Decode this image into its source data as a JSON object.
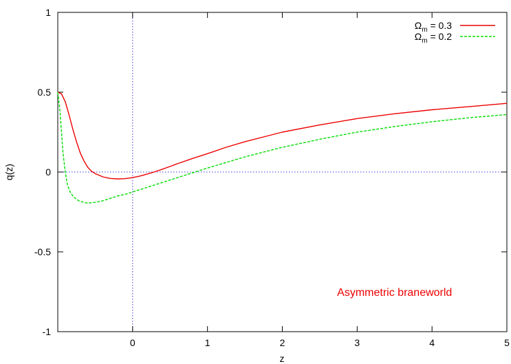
{
  "chart_data": {
    "type": "line",
    "xlabel": "z",
    "ylabel": "q(z)",
    "xlim": [
      -1,
      5
    ],
    "ylim": [
      -1,
      1
    ],
    "xticks": [
      "0",
      "1",
      "2",
      "3",
      "4",
      "5"
    ],
    "xtick_values": [
      0,
      1,
      2,
      3,
      4,
      5
    ],
    "yticks": [
      "1",
      "0.5",
      "0",
      "-0.5",
      "-1"
    ],
    "ytick_values": [
      1,
      0.5,
      0,
      -0.5,
      -1
    ],
    "reference_lines": {
      "x": 0,
      "y": 0,
      "color": "#3a3adc",
      "style": "dotted"
    },
    "annotation": {
      "text": "Asymmetric braneworld",
      "color": "#ee0000",
      "x": 3.5,
      "y": -0.75
    },
    "legend": {
      "position": "top-right"
    },
    "series": [
      {
        "name_main": "Ω",
        "name_sub": "m",
        "name_rest": " = 0.3",
        "color": "#ee0000",
        "dash": "solid",
        "points": [
          [
            -1.0,
            0.5
          ],
          [
            -0.95,
            0.49
          ],
          [
            -0.9,
            0.44
          ],
          [
            -0.85,
            0.36
          ],
          [
            -0.8,
            0.27
          ],
          [
            -0.75,
            0.19
          ],
          [
            -0.7,
            0.12
          ],
          [
            -0.65,
            0.07
          ],
          [
            -0.6,
            0.03
          ],
          [
            -0.55,
            0.005
          ],
          [
            -0.5,
            -0.01
          ],
          [
            -0.45,
            -0.02
          ],
          [
            -0.4,
            -0.03
          ],
          [
            -0.3,
            -0.04
          ],
          [
            -0.2,
            -0.043
          ],
          [
            -0.1,
            -0.042
          ],
          [
            0.0,
            -0.035
          ],
          [
            0.1,
            -0.025
          ],
          [
            0.2,
            -0.012
          ],
          [
            0.3,
            0.002
          ],
          [
            0.4,
            0.018
          ],
          [
            0.5,
            0.035
          ],
          [
            0.6,
            0.052
          ],
          [
            0.8,
            0.085
          ],
          [
            1.0,
            0.115
          ],
          [
            1.25,
            0.155
          ],
          [
            1.5,
            0.19
          ],
          [
            1.75,
            0.22
          ],
          [
            2.0,
            0.25
          ],
          [
            2.5,
            0.295
          ],
          [
            3.0,
            0.335
          ],
          [
            3.5,
            0.365
          ],
          [
            4.0,
            0.39
          ],
          [
            4.5,
            0.41
          ],
          [
            5.0,
            0.43
          ]
        ]
      },
      {
        "name_main": "Ω",
        "name_sub": "m",
        "name_rest": " = 0.2",
        "color": "#00dd00",
        "dash": "dashed",
        "points": [
          [
            -1.0,
            0.5
          ],
          [
            -0.97,
            0.38
          ],
          [
            -0.95,
            0.25
          ],
          [
            -0.93,
            0.12
          ],
          [
            -0.9,
            0.0
          ],
          [
            -0.87,
            -0.08
          ],
          [
            -0.83,
            -0.13
          ],
          [
            -0.78,
            -0.16
          ],
          [
            -0.72,
            -0.18
          ],
          [
            -0.65,
            -0.19
          ],
          [
            -0.6,
            -0.195
          ],
          [
            -0.5,
            -0.19
          ],
          [
            -0.4,
            -0.18
          ],
          [
            -0.3,
            -0.165
          ],
          [
            -0.2,
            -0.15
          ],
          [
            -0.1,
            -0.14
          ],
          [
            0.0,
            -0.125
          ],
          [
            0.2,
            -0.095
          ],
          [
            0.4,
            -0.065
          ],
          [
            0.6,
            -0.035
          ],
          [
            0.8,
            -0.005
          ],
          [
            1.0,
            0.025
          ],
          [
            1.25,
            0.06
          ],
          [
            1.5,
            0.095
          ],
          [
            1.75,
            0.125
          ],
          [
            2.0,
            0.155
          ],
          [
            2.5,
            0.205
          ],
          [
            3.0,
            0.25
          ],
          [
            3.5,
            0.285
          ],
          [
            4.0,
            0.315
          ],
          [
            4.5,
            0.34
          ],
          [
            5.0,
            0.36
          ]
        ]
      }
    ]
  }
}
